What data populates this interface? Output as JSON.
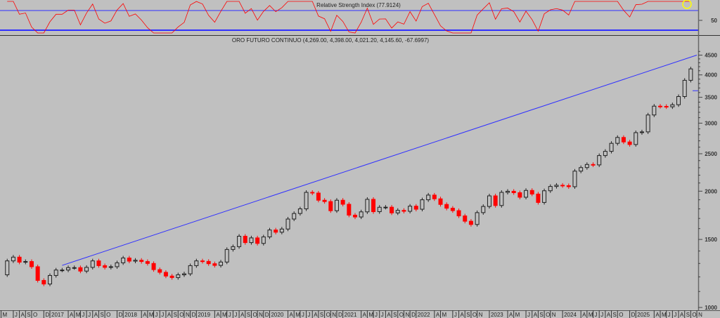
{
  "chart_data": {
    "type": "candlestick",
    "title": "ORO FUTURO CONTINUO (4,269.00, 4,398.00, 4,021.20, 4,145.60, -67.6997)",
    "y_scale": "log",
    "ylim": [
      1000,
      4700
    ],
    "y_ticks": [
      1000,
      1500,
      2000,
      2500,
      3000,
      3500,
      4000,
      4500
    ],
    "grid": false,
    "up_color": "#202020",
    "down_color": "#ff0000",
    "background": "#c0c0c0",
    "start": "2016-05",
    "monthly_close": [
      1215,
      1320,
      1350,
      1310,
      1315,
      1275,
      1175,
      1150,
      1210,
      1250,
      1250,
      1268,
      1268,
      1242,
      1270,
      1320,
      1283,
      1270,
      1275,
      1305,
      1343,
      1318,
      1325,
      1315,
      1300,
      1253,
      1233,
      1206,
      1195,
      1215,
      1222,
      1283,
      1320,
      1316,
      1298,
      1285,
      1311,
      1413,
      1437,
      1529,
      1472,
      1514,
      1465,
      1523,
      1587,
      1566,
      1596,
      1694,
      1751,
      1800,
      1986,
      1978,
      1895,
      1880,
      1780,
      1895,
      1850,
      1734,
      1715,
      1768,
      1905,
      1770,
      1817,
      1818,
      1757,
      1784,
      1774,
      1829,
      1796,
      1900,
      1954,
      1911,
      1848,
      1807,
      1781,
      1726,
      1672,
      1640,
      1760,
      1826,
      1945,
      1836,
      1986,
      1999,
      1982,
      1929,
      2009,
      1966,
      1870,
      2005,
      2057,
      2072,
      2067,
      2054,
      2254,
      2302,
      2345,
      2339,
      2473,
      2536,
      2660,
      2755,
      2682,
      2641,
      2835,
      2848,
      3150,
      3320,
      3315,
      3307,
      3348,
      3516,
      3873,
      4145.6
    ],
    "trendline": {
      "from": [
        "2017-03",
        1285
      ],
      "to": [
        "2025-11",
        4500
      ],
      "color": "#3030ff"
    },
    "horizontal_line": {
      "value": 3640,
      "from": "2025-08",
      "color": "#3030ff"
    },
    "x_ticks": [
      [
        "2016-05",
        "M"
      ],
      [
        "2016-07",
        "J"
      ],
      [
        "2016-08",
        "A"
      ],
      [
        "2016-09",
        "S"
      ],
      [
        "2016-10",
        "O"
      ],
      [
        "2016-12",
        "D"
      ],
      [
        "2017-01",
        "2017"
      ],
      [
        "2017-04",
        "A"
      ],
      [
        "2017-05",
        "M"
      ],
      [
        "2017-06",
        "J"
      ],
      [
        "2017-07",
        "J"
      ],
      [
        "2017-08",
        "A"
      ],
      [
        "2017-09",
        "S"
      ],
      [
        "2017-10",
        "O"
      ],
      [
        "2017-12",
        "D"
      ],
      [
        "2018-01",
        "2018"
      ],
      [
        "2018-04",
        "A"
      ],
      [
        "2018-05",
        "M"
      ],
      [
        "2018-06",
        "J"
      ],
      [
        "2018-07",
        "J"
      ],
      [
        "2018-08",
        "A"
      ],
      [
        "2018-09",
        "S"
      ],
      [
        "2018-10",
        "O"
      ],
      [
        "2018-11",
        "N"
      ],
      [
        "2018-12",
        "D"
      ],
      [
        "2019-01",
        "2019"
      ],
      [
        "2019-04",
        "A"
      ],
      [
        "2019-05",
        "M"
      ],
      [
        "2019-06",
        "J"
      ],
      [
        "2019-07",
        "J"
      ],
      [
        "2019-08",
        "A"
      ],
      [
        "2019-09",
        "S"
      ],
      [
        "2019-10",
        "O"
      ],
      [
        "2019-11",
        "N"
      ],
      [
        "2019-12",
        "D"
      ],
      [
        "2020-01",
        "2020"
      ],
      [
        "2020-04",
        "A"
      ],
      [
        "2020-05",
        "M"
      ],
      [
        "2020-06",
        "J"
      ],
      [
        "2020-07",
        "J"
      ],
      [
        "2020-08",
        "A"
      ],
      [
        "2020-09",
        "S"
      ],
      [
        "2020-10",
        "O"
      ],
      [
        "2020-11",
        "N"
      ],
      [
        "2020-12",
        "D"
      ],
      [
        "2021-01",
        "2021"
      ],
      [
        "2021-04",
        "A"
      ],
      [
        "2021-05",
        "M"
      ],
      [
        "2021-06",
        "J"
      ],
      [
        "2021-07",
        "J"
      ],
      [
        "2021-08",
        "A"
      ],
      [
        "2021-09",
        "S"
      ],
      [
        "2021-10",
        "O"
      ],
      [
        "2021-11",
        "N"
      ],
      [
        "2021-12",
        "D"
      ],
      [
        "2022-01",
        "2022"
      ],
      [
        "2022-04",
        "A"
      ],
      [
        "2022-05",
        "M"
      ],
      [
        "2022-07",
        "J"
      ],
      [
        "2022-08",
        "A"
      ],
      [
        "2022-09",
        "S"
      ],
      [
        "2022-10",
        "O"
      ],
      [
        "2022-11",
        "N"
      ],
      [
        "2023-01",
        "2023"
      ],
      [
        "2023-04",
        "A"
      ],
      [
        "2023-05",
        "M"
      ],
      [
        "2023-07",
        "J"
      ],
      [
        "2023-08",
        "A"
      ],
      [
        "2023-09",
        "S"
      ],
      [
        "2023-10",
        "O"
      ],
      [
        "2023-11",
        "N"
      ],
      [
        "2024-01",
        "2024"
      ],
      [
        "2024-04",
        "A"
      ],
      [
        "2024-05",
        "M"
      ],
      [
        "2024-06",
        "J"
      ],
      [
        "2024-07",
        "J"
      ],
      [
        "2024-08",
        "A"
      ],
      [
        "2024-09",
        "S"
      ],
      [
        "2024-10",
        "O"
      ],
      [
        "2024-12",
        "D"
      ],
      [
        "2025-01",
        "2025"
      ],
      [
        "2025-04",
        "A"
      ],
      [
        "2025-05",
        "M"
      ],
      [
        "2025-06",
        "J"
      ],
      [
        "2025-07",
        "J"
      ],
      [
        "2025-08",
        "A"
      ],
      [
        "2025-09",
        "S"
      ],
      [
        "2025-10",
        "O"
      ],
      [
        "2025-11",
        "N"
      ]
    ]
  },
  "rsi_panel": {
    "title": "Relative Strength Index (77.9124)",
    "y_tick": 50,
    "levels": [
      30,
      70
    ],
    "line_color": "#ff0000",
    "level_color": "#3030ff",
    "highlight_color": "#ffff00"
  }
}
